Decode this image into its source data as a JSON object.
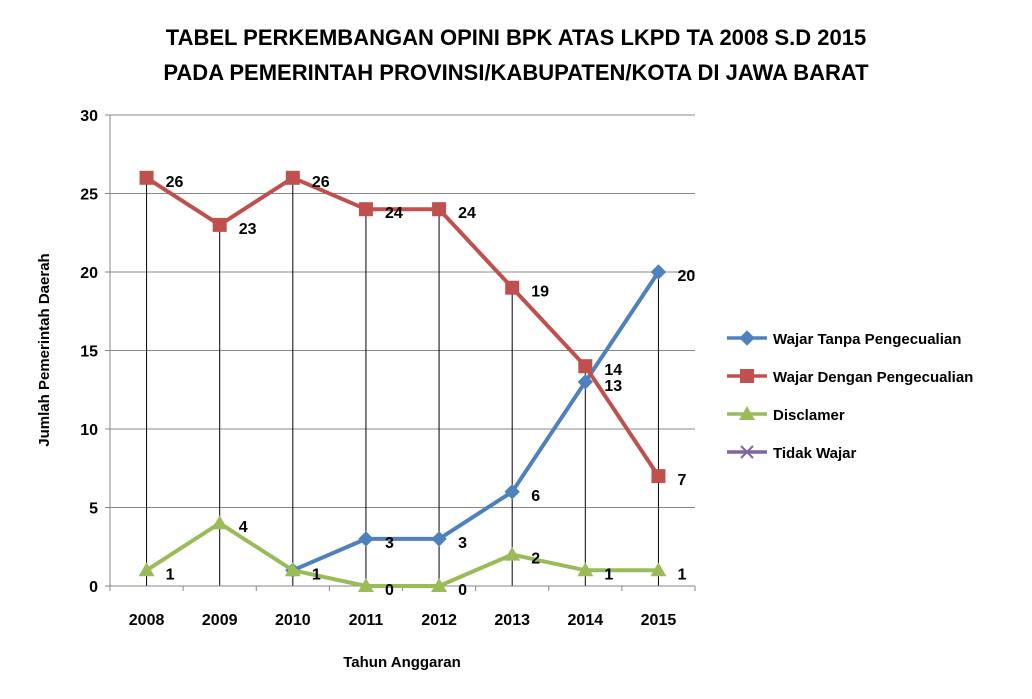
{
  "chart_data": {
    "type": "line",
    "title_line1": "TABEL PERKEMBANGAN OPINI BPK ATAS LKPD TA 2008 S.D 2015",
    "title_line2": "PADA PEMERINTAH  PROVINSI/KABUPATEN/KOTA DI JAWA BARAT",
    "xlabel": "Tahun Anggaran",
    "ylabel": "Jumlah Pemerintah Daerah",
    "ylim": [
      0,
      30
    ],
    "yticks": [
      0,
      5,
      10,
      15,
      20,
      25,
      30
    ],
    "categories": [
      "2008",
      "2009",
      "2010",
      "2011",
      "2012",
      "2013",
      "2014",
      "2015"
    ],
    "legend_position": "right",
    "series": [
      {
        "name": "Wajar Tanpa Pengecualian",
        "color": "#4F81BD",
        "marker": "diamond",
        "values": [
          null,
          null,
          1,
          3,
          3,
          6,
          13,
          20
        ],
        "labels": [
          null,
          null,
          null,
          "3",
          "3",
          "6",
          "13",
          "20"
        ]
      },
      {
        "name": "Wajar Dengan Pengecualian",
        "color": "#C0504D",
        "marker": "square",
        "values": [
          26,
          23,
          26,
          24,
          24,
          19,
          14,
          7
        ],
        "labels": [
          "26",
          "23",
          "26",
          "24",
          "24",
          "19",
          "14",
          "7"
        ]
      },
      {
        "name": "Disclamer",
        "color": "#9BBB59",
        "marker": "triangle",
        "values": [
          1,
          4,
          1,
          0,
          0,
          2,
          1,
          1
        ],
        "labels": [
          "1",
          "4",
          "1",
          "0",
          "0",
          "2",
          "1",
          "1"
        ]
      },
      {
        "name": "Tidak Wajar",
        "color": "#8064A2",
        "marker": "x",
        "values": [
          null,
          null,
          null,
          null,
          null,
          null,
          null,
          null
        ],
        "labels": [
          null,
          null,
          null,
          null,
          null,
          null,
          null,
          null
        ]
      }
    ]
  }
}
